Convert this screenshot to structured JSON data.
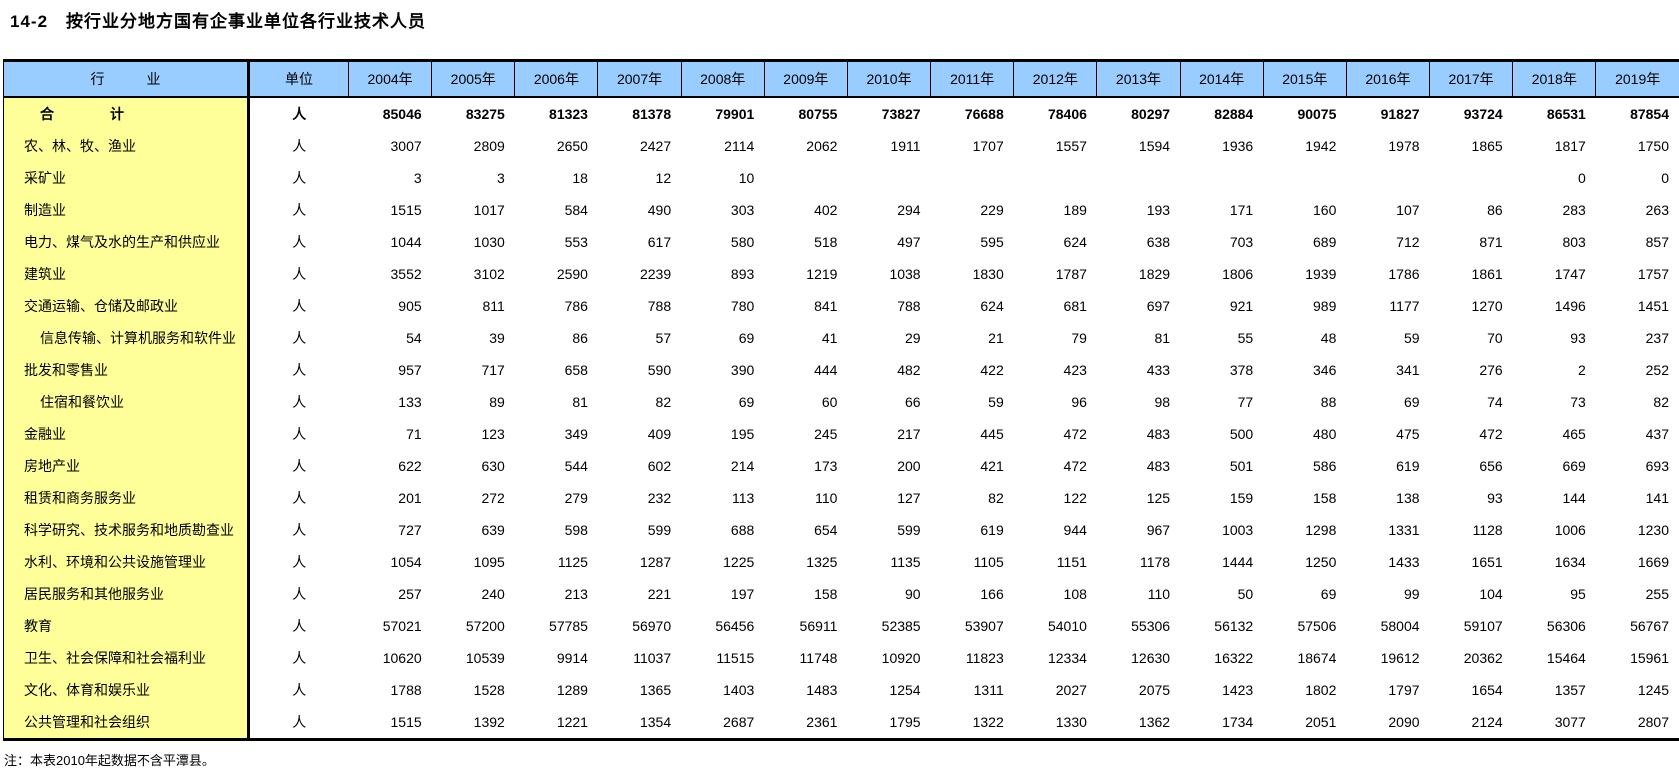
{
  "title": "14-2　按行业分地方国有企事业单位各行业技术人员",
  "note": "注：本表2010年起数据不含平潭县。",
  "colors": {
    "header_bg": "#99CCFF",
    "industry_bg": "#FFFF99",
    "border": "#000000"
  },
  "table": {
    "industry_header": "行　　　业",
    "unit_header": "单位",
    "unit_value": "人",
    "years": [
      "2004年",
      "2005年",
      "2006年",
      "2007年",
      "2008年",
      "2009年",
      "2010年",
      "2011年",
      "2012年",
      "2013年",
      "2014年",
      "2015年",
      "2016年",
      "2017年",
      "2018年",
      "2019年"
    ],
    "rows": [
      {
        "name": "合　　　　计",
        "bold": true,
        "indent": 0,
        "values": [
          "85046",
          "83275",
          "81323",
          "81378",
          "79901",
          "80755",
          "73827",
          "76688",
          "78406",
          "80297",
          "82884",
          "90075",
          "91827",
          "93724",
          "86531",
          "87854"
        ]
      },
      {
        "name": "农、林、牧、渔业",
        "bold": false,
        "indent": 0,
        "values": [
          "3007",
          "2809",
          "2650",
          "2427",
          "2114",
          "2062",
          "1911",
          "1707",
          "1557",
          "1594",
          "1936",
          "1942",
          "1978",
          "1865",
          "1817",
          "1750"
        ]
      },
      {
        "name": "采矿业",
        "bold": false,
        "indent": 0,
        "values": [
          "3",
          "3",
          "18",
          "12",
          "10",
          "",
          "",
          "",
          "",
          "",
          "",
          "",
          "",
          "",
          "0",
          "0"
        ]
      },
      {
        "name": "制造业",
        "bold": false,
        "indent": 0,
        "values": [
          "1515",
          "1017",
          "584",
          "490",
          "303",
          "402",
          "294",
          "229",
          "189",
          "193",
          "171",
          "160",
          "107",
          "86",
          "283",
          "263"
        ]
      },
      {
        "name": "电力、煤气及水的生产和供应业",
        "bold": false,
        "indent": 0,
        "values": [
          "1044",
          "1030",
          "553",
          "617",
          "580",
          "518",
          "497",
          "595",
          "624",
          "638",
          "703",
          "689",
          "712",
          "871",
          "803",
          "857"
        ]
      },
      {
        "name": "建筑业",
        "bold": false,
        "indent": 0,
        "values": [
          "3552",
          "3102",
          "2590",
          "2239",
          "893",
          "1219",
          "1038",
          "1830",
          "1787",
          "1829",
          "1806",
          "1939",
          "1786",
          "1861",
          "1747",
          "1757"
        ]
      },
      {
        "name": "交通运输、仓储及邮政业",
        "bold": false,
        "indent": 0,
        "values": [
          "905",
          "811",
          "786",
          "788",
          "780",
          "841",
          "788",
          "624",
          "681",
          "697",
          "921",
          "989",
          "1177",
          "1270",
          "1496",
          "1451"
        ]
      },
      {
        "name": "信息传输、计算机服务和软件业",
        "bold": false,
        "indent": 1,
        "values": [
          "54",
          "39",
          "86",
          "57",
          "69",
          "41",
          "29",
          "21",
          "79",
          "81",
          "55",
          "48",
          "59",
          "70",
          "93",
          "237"
        ]
      },
      {
        "name": "批发和零售业",
        "bold": false,
        "indent": 0,
        "values": [
          "957",
          "717",
          "658",
          "590",
          "390",
          "444",
          "482",
          "422",
          "423",
          "433",
          "378",
          "346",
          "341",
          "276",
          "2",
          "252"
        ]
      },
      {
        "name": "住宿和餐饮业",
        "bold": false,
        "indent": 1,
        "values": [
          "133",
          "89",
          "81",
          "82",
          "69",
          "60",
          "66",
          "59",
          "96",
          "98",
          "77",
          "88",
          "69",
          "74",
          "73",
          "82"
        ]
      },
      {
        "name": "金融业",
        "bold": false,
        "indent": 0,
        "values": [
          "71",
          "123",
          "349",
          "409",
          "195",
          "245",
          "217",
          "445",
          "472",
          "483",
          "500",
          "480",
          "475",
          "472",
          "465",
          "437"
        ]
      },
      {
        "name": "房地产业",
        "bold": false,
        "indent": 0,
        "values": [
          "622",
          "630",
          "544",
          "602",
          "214",
          "173",
          "200",
          "421",
          "472",
          "483",
          "501",
          "586",
          "619",
          "656",
          "669",
          "693"
        ]
      },
      {
        "name": "租赁和商务服务业",
        "bold": false,
        "indent": 0,
        "values": [
          "201",
          "272",
          "279",
          "232",
          "113",
          "110",
          "127",
          "82",
          "122",
          "125",
          "159",
          "158",
          "138",
          "93",
          "144",
          "141"
        ]
      },
      {
        "name": "科学研究、技术服务和地质勘查业",
        "bold": false,
        "indent": 0,
        "values": [
          "727",
          "639",
          "598",
          "599",
          "688",
          "654",
          "599",
          "619",
          "944",
          "967",
          "1003",
          "1298",
          "1331",
          "1128",
          "1006",
          "1230"
        ]
      },
      {
        "name": "水利、环境和公共设施管理业",
        "bold": false,
        "indent": 0,
        "values": [
          "1054",
          "1095",
          "1125",
          "1287",
          "1225",
          "1325",
          "1135",
          "1105",
          "1151",
          "1178",
          "1444",
          "1250",
          "1433",
          "1651",
          "1634",
          "1669"
        ]
      },
      {
        "name": "居民服务和其他服务业",
        "bold": false,
        "indent": 0,
        "values": [
          "257",
          "240",
          "213",
          "221",
          "197",
          "158",
          "90",
          "166",
          "108",
          "110",
          "50",
          "69",
          "99",
          "104",
          "95",
          "255"
        ]
      },
      {
        "name": "教育",
        "bold": false,
        "indent": 0,
        "values": [
          "57021",
          "57200",
          "57785",
          "56970",
          "56456",
          "56911",
          "52385",
          "53907",
          "54010",
          "55306",
          "56132",
          "57506",
          "58004",
          "59107",
          "56306",
          "56767"
        ]
      },
      {
        "name": "卫生、社会保障和社会福利业",
        "bold": false,
        "indent": 0,
        "values": [
          "10620",
          "10539",
          "9914",
          "11037",
          "11515",
          "11748",
          "10920",
          "11823",
          "12334",
          "12630",
          "16322",
          "18674",
          "19612",
          "20362",
          "15464",
          "15961"
        ]
      },
      {
        "name": "文化、体育和娱乐业",
        "bold": false,
        "indent": 0,
        "values": [
          "1788",
          "1528",
          "1289",
          "1365",
          "1403",
          "1483",
          "1254",
          "1311",
          "2027",
          "2075",
          "1423",
          "1802",
          "1797",
          "1654",
          "1357",
          "1245"
        ]
      },
      {
        "name": "公共管理和社会组织",
        "bold": false,
        "indent": 0,
        "values": [
          "1515",
          "1392",
          "1221",
          "1354",
          "2687",
          "2361",
          "1795",
          "1322",
          "1330",
          "1362",
          "1734",
          "2051",
          "2090",
          "2124",
          "3077",
          "2807"
        ]
      }
    ]
  }
}
